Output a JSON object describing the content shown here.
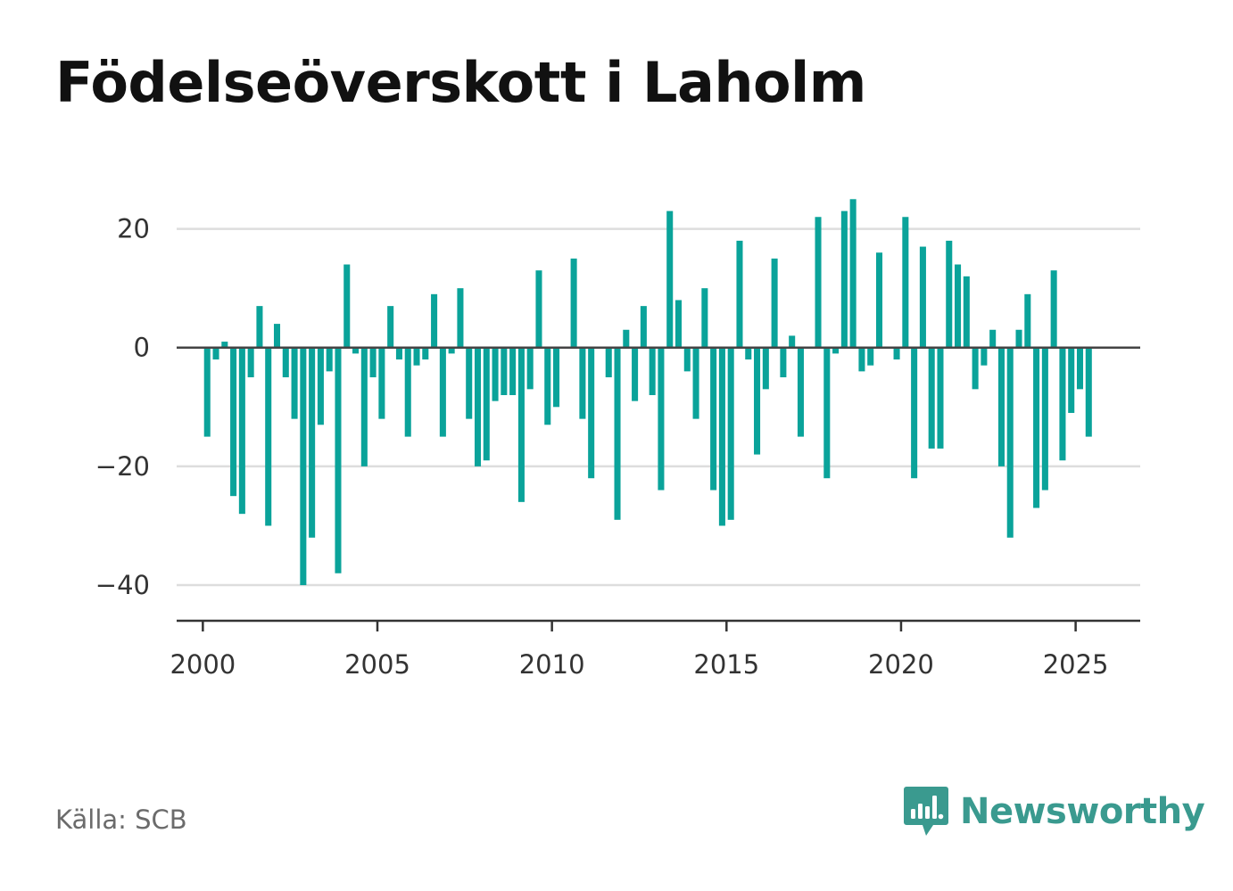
{
  "title": "Födelseöverskott i Laholm",
  "source": "Källa: SCB",
  "brand": {
    "name": "Newsworthy",
    "logo_icon": "newsworthy-chart-bubble-icon",
    "color": "#3a9a8f"
  },
  "chart_data": {
    "type": "bar",
    "bar_color": "#0aa39a",
    "grid": true,
    "ylim": [
      -46,
      30
    ],
    "yticks": [
      20,
      0,
      -20,
      -40
    ],
    "ytick_labels": [
      "20",
      "0",
      "−20",
      "−40"
    ],
    "xlim": [
      1999.25,
      2026.85
    ],
    "xticks": [
      2000,
      2005,
      2010,
      2015,
      2020,
      2025
    ],
    "xtick_labels": [
      "2000",
      "2005",
      "2010",
      "2015",
      "2020",
      "2025"
    ],
    "series": [
      {
        "x": [
          2000.125,
          2000.375,
          2000.625,
          2000.875,
          2001.125,
          2001.375,
          2001.625,
          2001.875,
          2002.125,
          2002.375,
          2002.625,
          2002.875,
          2003.125,
          2003.375,
          2003.625,
          2003.875,
          2004.125,
          2004.375,
          2004.625,
          2004.875,
          2005.125,
          2005.375,
          2005.625,
          2005.875,
          2006.125,
          2006.375,
          2006.625,
          2006.875,
          2007.125,
          2007.375,
          2007.625,
          2007.875,
          2008.125,
          2008.375,
          2008.625,
          2008.875,
          2009.125,
          2009.375,
          2009.625,
          2009.875,
          2010.125,
          2010.375,
          2010.625,
          2010.875,
          2011.125,
          2011.375,
          2011.625,
          2011.875,
          2012.125,
          2012.375,
          2012.625,
          2012.875,
          2013.125,
          2013.375,
          2013.625,
          2013.875,
          2014.125,
          2014.375,
          2014.625,
          2014.875,
          2015.125,
          2015.375,
          2015.625,
          2015.875,
          2016.125,
          2016.375,
          2016.625,
          2016.875,
          2017.125,
          2017.375,
          2017.625,
          2017.875,
          2018.125,
          2018.375,
          2018.625,
          2018.875,
          2019.125,
          2019.375,
          2019.625,
          2019.875,
          2020.125,
          2020.375,
          2020.625,
          2020.875,
          2021.125,
          2021.375,
          2021.625,
          2021.875,
          2022.125,
          2022.375,
          2022.625,
          2022.875,
          2023.125,
          2023.375,
          2023.625,
          2023.875,
          2024.125,
          2024.375,
          2024.625,
          2024.875,
          2025.125,
          2025.375
        ],
        "values": [
          -15,
          -2,
          1,
          -25,
          -28,
          -5,
          7,
          -30,
          4,
          -5,
          -12,
          -40,
          -32,
          -13,
          -4,
          -38,
          14,
          -1,
          -20,
          -5,
          -12,
          7,
          -2,
          -15,
          -3,
          -2,
          9,
          -15,
          -1,
          10,
          -12,
          -20,
          -19,
          -9,
          -8,
          -8,
          -26,
          -7,
          13,
          -13,
          -10,
          0,
          15,
          -12,
          -22,
          0,
          -5,
          -29,
          3,
          -9,
          7,
          -8,
          -24,
          23,
          8,
          -4,
          -12,
          10,
          -24,
          -30,
          -29,
          18,
          -2,
          -18,
          -7,
          15,
          -5,
          2,
          -15,
          0,
          22,
          -22,
          -1,
          23,
          25,
          -4,
          -3,
          16,
          0,
          -2,
          22,
          -22,
          17,
          -17,
          -17,
          18,
          14,
          12,
          -7,
          -3,
          3,
          -20,
          -32,
          3,
          9,
          -27,
          -24,
          13,
          -19,
          -11,
          -7,
          -15
        ]
      }
    ]
  }
}
